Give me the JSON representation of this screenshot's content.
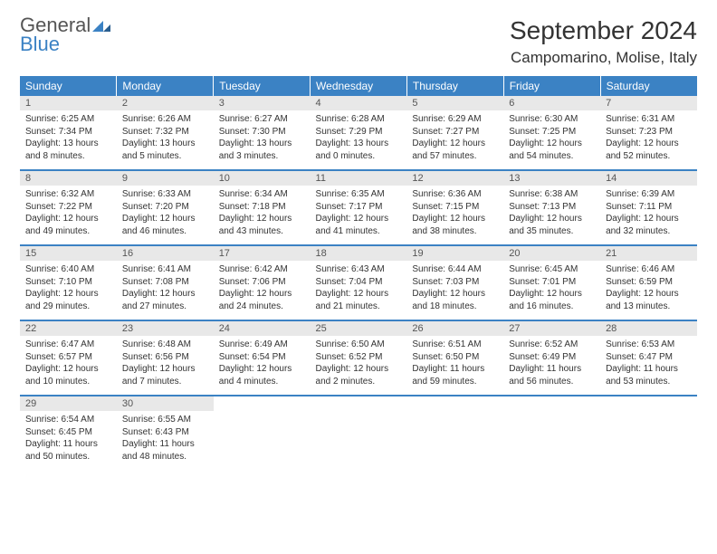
{
  "brand": {
    "name_part1": "General",
    "name_part2": "Blue"
  },
  "title": "September 2024",
  "location": "Campomarino, Molise, Italy",
  "colors": {
    "header_bg": "#3b82c4",
    "header_fg": "#ffffff",
    "daynum_bg": "#e8e8e8",
    "text": "#333333",
    "logo_gray": "#555555",
    "logo_blue": "#3b82c4"
  },
  "weekday_headers": [
    "Sunday",
    "Monday",
    "Tuesday",
    "Wednesday",
    "Thursday",
    "Friday",
    "Saturday"
  ],
  "weeks": [
    [
      {
        "day": "1",
        "sunrise": "Sunrise: 6:25 AM",
        "sunset": "Sunset: 7:34 PM",
        "daylight1": "Daylight: 13 hours",
        "daylight2": "and 8 minutes."
      },
      {
        "day": "2",
        "sunrise": "Sunrise: 6:26 AM",
        "sunset": "Sunset: 7:32 PM",
        "daylight1": "Daylight: 13 hours",
        "daylight2": "and 5 minutes."
      },
      {
        "day": "3",
        "sunrise": "Sunrise: 6:27 AM",
        "sunset": "Sunset: 7:30 PM",
        "daylight1": "Daylight: 13 hours",
        "daylight2": "and 3 minutes."
      },
      {
        "day": "4",
        "sunrise": "Sunrise: 6:28 AM",
        "sunset": "Sunset: 7:29 PM",
        "daylight1": "Daylight: 13 hours",
        "daylight2": "and 0 minutes."
      },
      {
        "day": "5",
        "sunrise": "Sunrise: 6:29 AM",
        "sunset": "Sunset: 7:27 PM",
        "daylight1": "Daylight: 12 hours",
        "daylight2": "and 57 minutes."
      },
      {
        "day": "6",
        "sunrise": "Sunrise: 6:30 AM",
        "sunset": "Sunset: 7:25 PM",
        "daylight1": "Daylight: 12 hours",
        "daylight2": "and 54 minutes."
      },
      {
        "day": "7",
        "sunrise": "Sunrise: 6:31 AM",
        "sunset": "Sunset: 7:23 PM",
        "daylight1": "Daylight: 12 hours",
        "daylight2": "and 52 minutes."
      }
    ],
    [
      {
        "day": "8",
        "sunrise": "Sunrise: 6:32 AM",
        "sunset": "Sunset: 7:22 PM",
        "daylight1": "Daylight: 12 hours",
        "daylight2": "and 49 minutes."
      },
      {
        "day": "9",
        "sunrise": "Sunrise: 6:33 AM",
        "sunset": "Sunset: 7:20 PM",
        "daylight1": "Daylight: 12 hours",
        "daylight2": "and 46 minutes."
      },
      {
        "day": "10",
        "sunrise": "Sunrise: 6:34 AM",
        "sunset": "Sunset: 7:18 PM",
        "daylight1": "Daylight: 12 hours",
        "daylight2": "and 43 minutes."
      },
      {
        "day": "11",
        "sunrise": "Sunrise: 6:35 AM",
        "sunset": "Sunset: 7:17 PM",
        "daylight1": "Daylight: 12 hours",
        "daylight2": "and 41 minutes."
      },
      {
        "day": "12",
        "sunrise": "Sunrise: 6:36 AM",
        "sunset": "Sunset: 7:15 PM",
        "daylight1": "Daylight: 12 hours",
        "daylight2": "and 38 minutes."
      },
      {
        "day": "13",
        "sunrise": "Sunrise: 6:38 AM",
        "sunset": "Sunset: 7:13 PM",
        "daylight1": "Daylight: 12 hours",
        "daylight2": "and 35 minutes."
      },
      {
        "day": "14",
        "sunrise": "Sunrise: 6:39 AM",
        "sunset": "Sunset: 7:11 PM",
        "daylight1": "Daylight: 12 hours",
        "daylight2": "and 32 minutes."
      }
    ],
    [
      {
        "day": "15",
        "sunrise": "Sunrise: 6:40 AM",
        "sunset": "Sunset: 7:10 PM",
        "daylight1": "Daylight: 12 hours",
        "daylight2": "and 29 minutes."
      },
      {
        "day": "16",
        "sunrise": "Sunrise: 6:41 AM",
        "sunset": "Sunset: 7:08 PM",
        "daylight1": "Daylight: 12 hours",
        "daylight2": "and 27 minutes."
      },
      {
        "day": "17",
        "sunrise": "Sunrise: 6:42 AM",
        "sunset": "Sunset: 7:06 PM",
        "daylight1": "Daylight: 12 hours",
        "daylight2": "and 24 minutes."
      },
      {
        "day": "18",
        "sunrise": "Sunrise: 6:43 AM",
        "sunset": "Sunset: 7:04 PM",
        "daylight1": "Daylight: 12 hours",
        "daylight2": "and 21 minutes."
      },
      {
        "day": "19",
        "sunrise": "Sunrise: 6:44 AM",
        "sunset": "Sunset: 7:03 PM",
        "daylight1": "Daylight: 12 hours",
        "daylight2": "and 18 minutes."
      },
      {
        "day": "20",
        "sunrise": "Sunrise: 6:45 AM",
        "sunset": "Sunset: 7:01 PM",
        "daylight1": "Daylight: 12 hours",
        "daylight2": "and 16 minutes."
      },
      {
        "day": "21",
        "sunrise": "Sunrise: 6:46 AM",
        "sunset": "Sunset: 6:59 PM",
        "daylight1": "Daylight: 12 hours",
        "daylight2": "and 13 minutes."
      }
    ],
    [
      {
        "day": "22",
        "sunrise": "Sunrise: 6:47 AM",
        "sunset": "Sunset: 6:57 PM",
        "daylight1": "Daylight: 12 hours",
        "daylight2": "and 10 minutes."
      },
      {
        "day": "23",
        "sunrise": "Sunrise: 6:48 AM",
        "sunset": "Sunset: 6:56 PM",
        "daylight1": "Daylight: 12 hours",
        "daylight2": "and 7 minutes."
      },
      {
        "day": "24",
        "sunrise": "Sunrise: 6:49 AM",
        "sunset": "Sunset: 6:54 PM",
        "daylight1": "Daylight: 12 hours",
        "daylight2": "and 4 minutes."
      },
      {
        "day": "25",
        "sunrise": "Sunrise: 6:50 AM",
        "sunset": "Sunset: 6:52 PM",
        "daylight1": "Daylight: 12 hours",
        "daylight2": "and 2 minutes."
      },
      {
        "day": "26",
        "sunrise": "Sunrise: 6:51 AM",
        "sunset": "Sunset: 6:50 PM",
        "daylight1": "Daylight: 11 hours",
        "daylight2": "and 59 minutes."
      },
      {
        "day": "27",
        "sunrise": "Sunrise: 6:52 AM",
        "sunset": "Sunset: 6:49 PM",
        "daylight1": "Daylight: 11 hours",
        "daylight2": "and 56 minutes."
      },
      {
        "day": "28",
        "sunrise": "Sunrise: 6:53 AM",
        "sunset": "Sunset: 6:47 PM",
        "daylight1": "Daylight: 11 hours",
        "daylight2": "and 53 minutes."
      }
    ],
    [
      {
        "day": "29",
        "sunrise": "Sunrise: 6:54 AM",
        "sunset": "Sunset: 6:45 PM",
        "daylight1": "Daylight: 11 hours",
        "daylight2": "and 50 minutes."
      },
      {
        "day": "30",
        "sunrise": "Sunrise: 6:55 AM",
        "sunset": "Sunset: 6:43 PM",
        "daylight1": "Daylight: 11 hours",
        "daylight2": "and 48 minutes."
      },
      null,
      null,
      null,
      null,
      null
    ]
  ]
}
